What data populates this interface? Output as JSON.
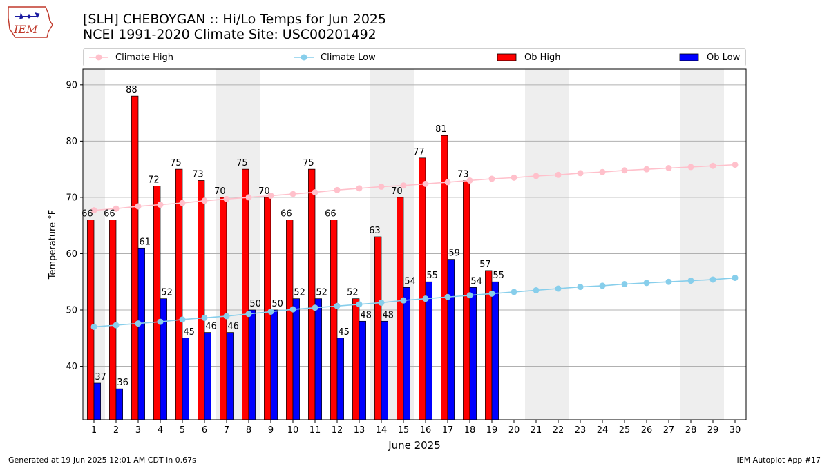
{
  "header": {
    "title_line1": "[SLH] CHEBOYGAN :: Hi/Lo Temps for Jun 2025",
    "title_line2": "NCEI 1991-2020 Climate Site: USC00201492",
    "logo_text": "IEM"
  },
  "legend": {
    "climate_high": "Climate High",
    "climate_low": "Climate Low",
    "ob_high": "Ob High",
    "ob_low": "Ob Low"
  },
  "footer": {
    "generated": "Generated at 19 Jun 2025 12:01 AM CDT in 0.67s",
    "app": "IEM Autoplot App #17"
  },
  "colors": {
    "ob_high": "#ff0000",
    "ob_low": "#0000ff",
    "climate_high": "#ffc0cb",
    "climate_low": "#87ceeb",
    "weekend_shade": "#eeeeee",
    "grid": "#b0b0b0"
  },
  "chart_data": {
    "type": "bar",
    "xlabel": "June 2025",
    "ylabel": "Temperature °F",
    "ylim": [
      30.5,
      92.8
    ],
    "yticks": [
      40,
      50,
      60,
      70,
      80,
      90
    ],
    "grid": "horizontal",
    "legend_position": "top",
    "categories": [
      1,
      2,
      3,
      4,
      5,
      6,
      7,
      8,
      9,
      10,
      11,
      12,
      13,
      14,
      15,
      16,
      17,
      18,
      19,
      20,
      21,
      22,
      23,
      24,
      25,
      26,
      27,
      28,
      29,
      30
    ],
    "weekend_days": [
      1,
      7,
      8,
      14,
      15,
      21,
      22,
      28,
      29
    ],
    "series": [
      {
        "name": "Ob High",
        "kind": "bar",
        "values": [
          66,
          66,
          88,
          72,
          75,
          73,
          70,
          75,
          70,
          66,
          75,
          66,
          52,
          63,
          70,
          77,
          81,
          73,
          57,
          null,
          null,
          null,
          null,
          null,
          null,
          null,
          null,
          null,
          null,
          null
        ]
      },
      {
        "name": "Ob Low",
        "kind": "bar",
        "values": [
          37,
          36,
          61,
          52,
          45,
          46,
          46,
          50,
          50,
          52,
          52,
          45,
          48,
          48,
          54,
          55,
          59,
          54,
          55,
          null,
          null,
          null,
          null,
          null,
          null,
          null,
          null,
          null,
          null,
          null
        ]
      },
      {
        "name": "Climate High",
        "kind": "line",
        "values": [
          67.7,
          68.0,
          68.4,
          68.7,
          69.0,
          69.4,
          69.7,
          70.0,
          70.3,
          70.6,
          70.9,
          71.3,
          71.6,
          71.9,
          72.1,
          72.4,
          72.7,
          73.0,
          73.3,
          73.5,
          73.8,
          74.0,
          74.3,
          74.5,
          74.8,
          75.0,
          75.2,
          75.4,
          75.6,
          75.8
        ]
      },
      {
        "name": "Climate Low",
        "kind": "line",
        "values": [
          47.0,
          47.3,
          47.6,
          47.9,
          48.3,
          48.6,
          48.9,
          49.3,
          49.7,
          50.1,
          50.4,
          50.7,
          51.0,
          51.3,
          51.7,
          52.0,
          52.3,
          52.6,
          52.9,
          53.2,
          53.5,
          53.8,
          54.1,
          54.3,
          54.6,
          54.8,
          55.0,
          55.2,
          55.4,
          55.7
        ]
      }
    ]
  }
}
